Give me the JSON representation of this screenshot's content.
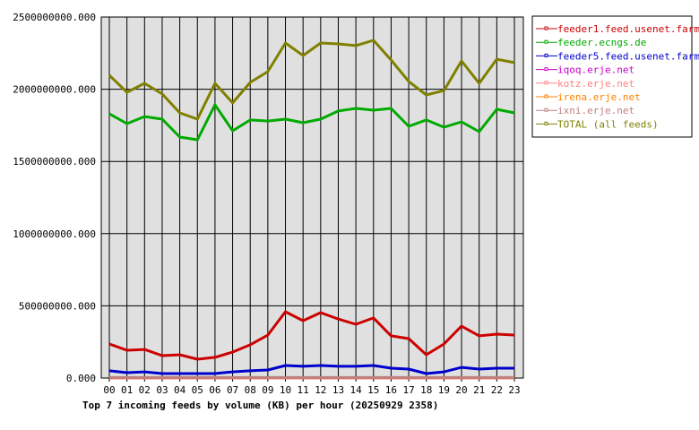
{
  "chart_data": {
    "type": "line",
    "title": "Top 7 incoming feeds by volume (KB) per hour (20250929 2358)",
    "xlabel": "",
    "ylabel": "",
    "ylim": [
      0,
      2500000000
    ],
    "yticks": [
      "0.000",
      "500000000.000",
      "1000000000.000",
      "1500000000.000",
      "2000000000.000",
      "2500000000.000"
    ],
    "ytick_values": [
      0,
      500000000,
      1000000000,
      1500000000,
      2000000000,
      2500000000
    ],
    "categories": [
      "00",
      "01",
      "02",
      "03",
      "04",
      "05",
      "06",
      "07",
      "08",
      "09",
      "10",
      "11",
      "12",
      "13",
      "14",
      "15",
      "16",
      "17",
      "18",
      "19",
      "20",
      "21",
      "22",
      "23"
    ],
    "grid": true,
    "legend_position": "right",
    "series": [
      {
        "name": "feeder1.feed.usenet.farm",
        "color": "#cc0000",
        "values": [
          236000000,
          192000000,
          198000000,
          155000000,
          161000000,
          130000000,
          143000000,
          180000000,
          230000000,
          298000000,
          459000000,
          397000000,
          453000000,
          409000000,
          372000000,
          416000000,
          292000000,
          273000000,
          161000000,
          236000000,
          360000000,
          292000000,
          304000000,
          298000000
        ]
      },
      {
        "name": "feeder.ecngs.de",
        "color": "#00aa00",
        "values": [
          1830000000,
          1762000000,
          1811000000,
          1793000000,
          1669000000,
          1650000000,
          1892000000,
          1712000000,
          1787000000,
          1780000000,
          1793000000,
          1768000000,
          1793000000,
          1849000000,
          1867000000,
          1855000000,
          1867000000,
          1743000000,
          1787000000,
          1737000000,
          1774000000,
          1706000000,
          1861000000,
          1836000000
        ]
      },
      {
        "name": "feeder5.feed.usenet.farm",
        "color": "#0000cc",
        "values": [
          50000000,
          37000000,
          43000000,
          31000000,
          31000000,
          31000000,
          31000000,
          43000000,
          50000000,
          56000000,
          87000000,
          81000000,
          87000000,
          81000000,
          81000000,
          87000000,
          68000000,
          62000000,
          31000000,
          43000000,
          74000000,
          62000000,
          68000000,
          68000000
        ]
      },
      {
        "name": "iqoq.erje.net",
        "color": "#cc00cc",
        "values": [
          2000000,
          2000000,
          2000000,
          2000000,
          2000000,
          2000000,
          2000000,
          2000000,
          2000000,
          2000000,
          2000000,
          2000000,
          2000000,
          2000000,
          2000000,
          2000000,
          2000000,
          2000000,
          2000000,
          2000000,
          2000000,
          2000000,
          2000000,
          2000000
        ]
      },
      {
        "name": "kotz.erje.net",
        "color": "#ff8080",
        "values": [
          3000000,
          3000000,
          3000000,
          3000000,
          3000000,
          3000000,
          3000000,
          3000000,
          3000000,
          3000000,
          3000000,
          3000000,
          3000000,
          3000000,
          3000000,
          3000000,
          3000000,
          3000000,
          3000000,
          3000000,
          3000000,
          3000000,
          3000000,
          3000000
        ]
      },
      {
        "name": "irena.erje.net",
        "color": "#ff8000",
        "values": [
          2000000,
          2000000,
          2000000,
          2000000,
          2000000,
          2000000,
          2000000,
          2000000,
          2000000,
          2000000,
          2000000,
          2000000,
          2000000,
          2000000,
          2000000,
          2000000,
          2000000,
          2000000,
          2000000,
          2000000,
          2000000,
          2000000,
          2000000,
          2000000
        ]
      },
      {
        "name": "ixni.erje.net",
        "color": "#c08080",
        "values": [
          4000000,
          4000000,
          4000000,
          4000000,
          4000000,
          4000000,
          4000000,
          4000000,
          4000000,
          4000000,
          4000000,
          4000000,
          4000000,
          4000000,
          4000000,
          4000000,
          4000000,
          4000000,
          4000000,
          4000000,
          4000000,
          4000000,
          4000000,
          4000000
        ]
      },
      {
        "name": "TOTAL (all feeds)",
        "color": "#808000",
        "values": [
          2097000000,
          1979000000,
          2041000000,
          1967000000,
          1836000000,
          1793000000,
          2041000000,
          1905000000,
          2047000000,
          2122000000,
          2320000000,
          2233000000,
          2320000000,
          2314000000,
          2302000000,
          2339000000,
          2202000000,
          2054000000,
          1960000000,
          1991000000,
          2196000000,
          2041000000,
          2208000000,
          2184000000
        ]
      }
    ]
  }
}
